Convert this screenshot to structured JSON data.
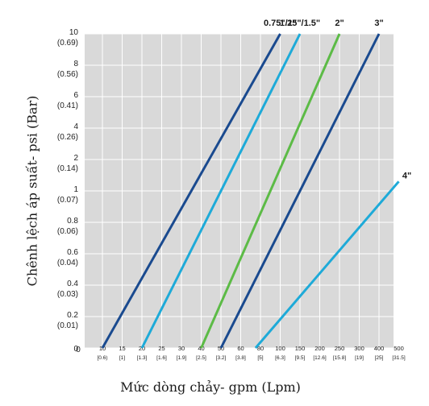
{
  "chart_data": {
    "type": "line",
    "xlabel": "Mức dòng chảy- gpm (Lpm)",
    "ylabel": "Chênh lệch áp suất- psi (Bar)",
    "x_ticks": [
      {
        "v": 10,
        "label": "10",
        "sub": "[0.6)"
      },
      {
        "v": 15,
        "label": "15",
        "sub": "[1]"
      },
      {
        "v": 20,
        "label": "20",
        "sub": "[1.3]"
      },
      {
        "v": 25,
        "label": "25",
        "sub": "[1.6]"
      },
      {
        "v": 30,
        "label": "30",
        "sub": "[1.9]"
      },
      {
        "v": 40,
        "label": "40",
        "sub": "[2.5]"
      },
      {
        "v": 50,
        "label": "50",
        "sub": "[3.2]"
      },
      {
        "v": 60,
        "label": "60",
        "sub": "[3.8]"
      },
      {
        "v": 80,
        "label": "80",
        "sub": "[5]"
      },
      {
        "v": 100,
        "label": "100",
        "sub": "[6.3]"
      },
      {
        "v": 150,
        "label": "150",
        "sub": "[9.5]"
      },
      {
        "v": 200,
        "label": "200",
        "sub": "[12.6]"
      },
      {
        "v": 250,
        "label": "250",
        "sub": "[15.8]"
      },
      {
        "v": 300,
        "label": "300",
        "sub": "[19]"
      },
      {
        "v": 400,
        "label": "400",
        "sub": "[25]"
      },
      {
        "v": 500,
        "label": "500",
        "sub": "[31.5]"
      }
    ],
    "x_zero_label": "0",
    "y_ticks": [
      {
        "v": 0,
        "label": "0",
        "sub": ""
      },
      {
        "v": 0.2,
        "label": "0.2",
        "sub": "(0.01)"
      },
      {
        "v": 0.4,
        "label": "0.4",
        "sub": "(0.03)"
      },
      {
        "v": 0.6,
        "label": "0.6",
        "sub": "(0.04)"
      },
      {
        "v": 0.8,
        "label": "0.8",
        "sub": "(0.06)"
      },
      {
        "v": 1,
        "label": "1",
        "sub": "(0.07)"
      },
      {
        "v": 2,
        "label": "2",
        "sub": "(0.14)"
      },
      {
        "v": 4,
        "label": "4",
        "sub": "(0.26)"
      },
      {
        "v": 6,
        "label": "6",
        "sub": "(0.41)"
      },
      {
        "v": 8,
        "label": "8",
        "sub": "(0.56)"
      },
      {
        "v": 10,
        "label": "10",
        "sub": "(0.69)"
      }
    ],
    "grid": true,
    "series": [
      {
        "name": "0.75\"/1\"",
        "color": "#1a4a8f",
        "points": [
          [
            10,
            0
          ],
          [
            100,
            10
          ]
        ]
      },
      {
        "name": "1.25\"/1.5\"",
        "color": "#1eaad8",
        "points": [
          [
            20,
            0
          ],
          [
            150,
            10
          ]
        ]
      },
      {
        "name": "2\"",
        "color": "#5cbb46",
        "points": [
          [
            40,
            0
          ],
          [
            250,
            10
          ]
        ]
      },
      {
        "name": "3\"",
        "color": "#1a4a8f",
        "points": [
          [
            50,
            0
          ],
          [
            400,
            10
          ]
        ]
      },
      {
        "name": "4\"",
        "color": "#1eaad8",
        "points": [
          [
            75,
            0
          ],
          [
            500,
            1.3
          ]
        ]
      }
    ]
  }
}
